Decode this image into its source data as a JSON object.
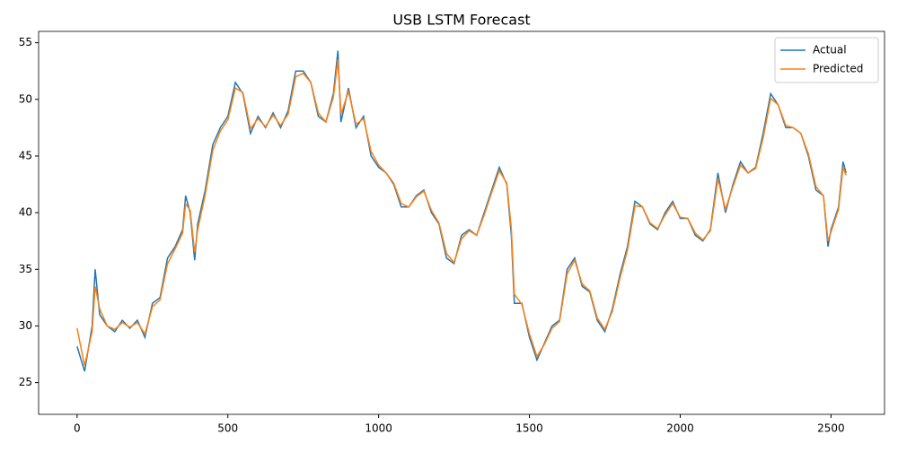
{
  "chart_data": {
    "type": "line",
    "title": "USB LSTM Forecast",
    "x": [
      0,
      25,
      50,
      60,
      75,
      100,
      125,
      150,
      175,
      200,
      225,
      250,
      275,
      300,
      325,
      350,
      360,
      375,
      390,
      400,
      425,
      450,
      475,
      500,
      525,
      550,
      575,
      600,
      625,
      650,
      675,
      700,
      725,
      750,
      775,
      800,
      825,
      850,
      865,
      875,
      900,
      925,
      950,
      975,
      1000,
      1025,
      1050,
      1075,
      1100,
      1125,
      1150,
      1175,
      1200,
      1225,
      1250,
      1275,
      1300,
      1325,
      1350,
      1375,
      1400,
      1425,
      1440,
      1450,
      1475,
      1500,
      1525,
      1550,
      1575,
      1600,
      1625,
      1650,
      1675,
      1700,
      1725,
      1750,
      1775,
      1800,
      1825,
      1850,
      1875,
      1900,
      1925,
      1950,
      1975,
      2000,
      2025,
      2050,
      2075,
      2100,
      2125,
      2150,
      2175,
      2200,
      2225,
      2250,
      2275,
      2300,
      2325,
      2350,
      2375,
      2400,
      2425,
      2450,
      2475,
      2490,
      2500,
      2525,
      2540,
      2550
    ],
    "series": [
      {
        "name": "Actual",
        "color": "#1f77b4",
        "values": [
          28.2,
          26,
          30,
          35,
          31,
          30,
          29.5,
          30.5,
          29.8,
          30.5,
          29,
          32,
          32.5,
          36,
          37,
          38.5,
          41.5,
          40,
          35.8,
          39,
          42,
          46,
          47.5,
          48.5,
          51.5,
          50.5,
          47,
          48.5,
          47.5,
          48.8,
          47.5,
          49,
          52.5,
          52.5,
          51.5,
          48.5,
          48,
          50.5,
          54.3,
          48,
          51,
          47.5,
          48.5,
          45,
          44,
          43.5,
          42.5,
          40.5,
          40.5,
          41.5,
          42,
          40,
          39,
          36,
          35.5,
          38,
          38.5,
          38,
          40,
          42,
          44,
          42.5,
          38,
          32,
          32,
          29,
          27,
          28.5,
          30,
          30.5,
          35,
          36,
          33.5,
          33,
          30.5,
          29.5,
          31.5,
          34.5,
          37,
          41,
          40.5,
          39,
          38.5,
          40,
          41,
          39.5,
          39.5,
          38,
          37.5,
          38.5,
          43.5,
          40,
          42.5,
          44.5,
          43.5,
          44,
          47,
          50.5,
          49.5,
          47.5,
          47.5,
          47,
          45,
          42,
          41.5,
          37,
          38.5,
          40.5,
          44.5,
          43.5
        ]
      },
      {
        "name": "Predicted",
        "color": "#ff7f0e",
        "values": [
          29.8,
          26.5,
          29.5,
          33.5,
          31.5,
          30,
          29.7,
          30.3,
          29.9,
          30.3,
          29.3,
          31.7,
          32.3,
          35.5,
          36.8,
          38.2,
          40.8,
          40.2,
          36.5,
          38.5,
          41.6,
          45.5,
          47.2,
          48.2,
          51,
          50.6,
          47.4,
          48.3,
          47.6,
          48.6,
          47.7,
          48.7,
          52,
          52.3,
          51.5,
          48.8,
          48,
          50.2,
          53.5,
          48.7,
          50.7,
          47.8,
          48.3,
          45.4,
          44.2,
          43.5,
          42.6,
          40.8,
          40.5,
          41.4,
          41.9,
          40.2,
          39.1,
          36.4,
          35.6,
          37.7,
          38.4,
          38,
          39.8,
          41.8,
          43.7,
          42.6,
          38.6,
          32.8,
          31.9,
          29.3,
          27.3,
          28.4,
          29.8,
          30.4,
          34.6,
          35.8,
          33.7,
          33.1,
          30.7,
          29.7,
          31.3,
          34.2,
          36.7,
          40.6,
          40.5,
          39.1,
          38.6,
          39.8,
          40.8,
          39.6,
          39.5,
          38.2,
          37.6,
          38.4,
          43,
          40.3,
          42.3,
          44.2,
          43.5,
          43.9,
          46.6,
          50.1,
          49.5,
          47.7,
          47.5,
          47,
          45.2,
          42.3,
          41.5,
          37.5,
          38.3,
          40.3,
          44,
          43.3
        ]
      }
    ],
    "xlim": [
      -127.5,
      2677.5
    ],
    "ylim": [
      22.2,
      56.0
    ],
    "xticks": [
      0,
      500,
      1000,
      1500,
      2000,
      2500
    ],
    "yticks": [
      25,
      30,
      35,
      40,
      45,
      50,
      55
    ],
    "grid": false,
    "legend": "upper right"
  }
}
